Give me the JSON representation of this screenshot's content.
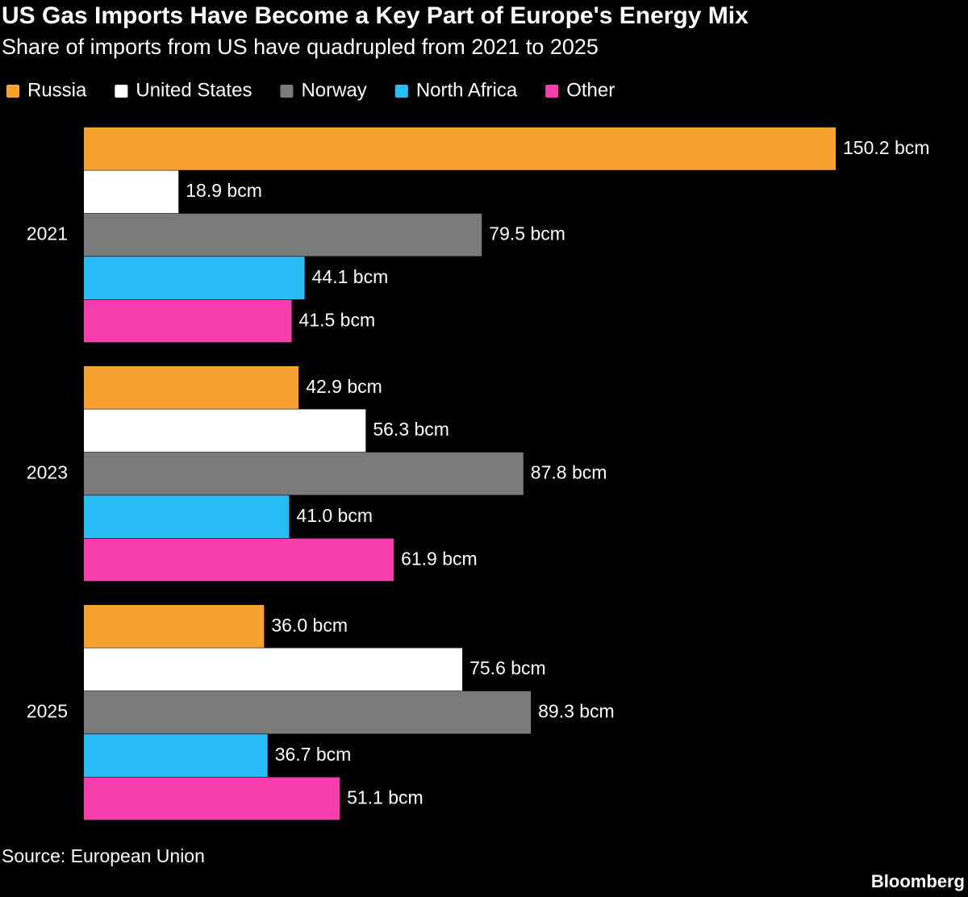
{
  "chart_data": {
    "type": "bar",
    "orientation": "horizontal",
    "title": "US Gas Imports Have Become a Key Part of Europe's Energy Mix",
    "subtitle": "Share of imports from US have quadrupled from 2021 to 2025",
    "categories": [
      "2021",
      "2023",
      "2025"
    ],
    "series": [
      {
        "name": "Russia",
        "color": "#f9a12e",
        "values": [
          150.2,
          42.9,
          36.0
        ],
        "value_labels": [
          "150.2 bcm",
          "42.9 bcm",
          "36.0 bcm"
        ]
      },
      {
        "name": "United States",
        "color": "#ffffff",
        "values": [
          18.9,
          56.3,
          75.6
        ],
        "value_labels": [
          "18.9 bcm",
          "56.3 bcm",
          "75.6 bcm"
        ]
      },
      {
        "name": "Norway",
        "color": "#7a7a7a",
        "values": [
          79.5,
          87.8,
          89.3
        ],
        "value_labels": [
          "79.5 bcm",
          "87.8 bcm",
          "89.3 bcm"
        ]
      },
      {
        "name": "North Africa",
        "color": "#29bdf8",
        "values": [
          44.1,
          41.0,
          36.7
        ],
        "value_labels": [
          "44.1 bcm",
          "41.0 bcm",
          "36.7 bcm"
        ]
      },
      {
        "name": "Other",
        "color": "#f63fad",
        "values": [
          41.5,
          61.9,
          51.1
        ],
        "value_labels": [
          "41.5 bcm",
          "61.9 bcm",
          "51.1 bcm"
        ]
      }
    ],
    "legend": "top-left",
    "source": "Source: European Union",
    "credit": "Bloomberg"
  }
}
